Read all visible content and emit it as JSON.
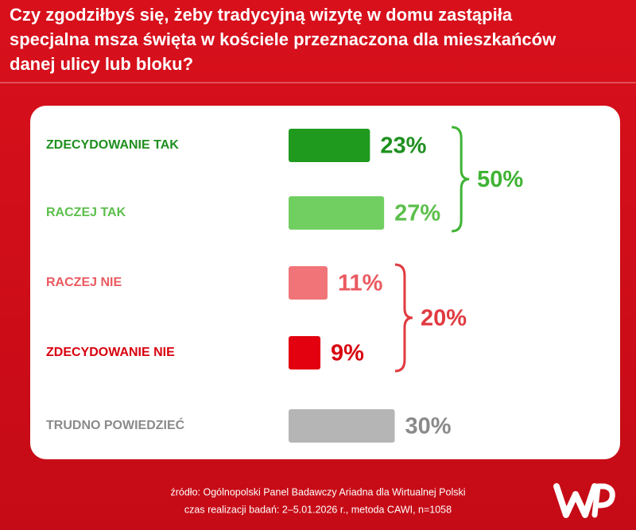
{
  "chart_data": {
    "type": "bar",
    "title": [
      "Czy zgodziłbyś się, żeby tradycyjną wizytę w domu zastąpiła",
      "specjalna msza święta w kościele przeznaczona dla mieszkańców",
      "danej ulicy lub bloku?"
    ],
    "categories": [
      "ZDECYDOWANIE TAK",
      "RACZEJ TAK",
      "RACZEJ NIE",
      "ZDECYDOWANIE NIE",
      "TRUDNO POWIEDZIEĆ"
    ],
    "values": [
      23,
      27,
      11,
      9,
      30
    ],
    "value_labels": [
      "23%",
      "27%",
      "11%",
      "9%",
      "30%"
    ],
    "colors": [
      "#1f9a1f",
      "#70cf60",
      "#f07478",
      "#e3000f",
      "#b5b5b5"
    ],
    "label_colors": [
      "#1e8f1e",
      "#5cbf4c",
      "#ea5a60",
      "#d8000e",
      "#8a8a8a"
    ],
    "groups": [
      {
        "members": [
          0,
          1
        ],
        "value": 50,
        "value_label": "50%",
        "color": "#3fb334"
      },
      {
        "members": [
          2,
          3
        ],
        "value": 20,
        "value_label": "20%",
        "color": "#e03a40"
      }
    ],
    "source": [
      "źródło: Ogólnopolski Panel Badawczy Ariadna dla Wirtualnej Polski",
      "czas realizacji badań: 2–5.01.2026 r., metoda CAWI, n=1058"
    ]
  }
}
